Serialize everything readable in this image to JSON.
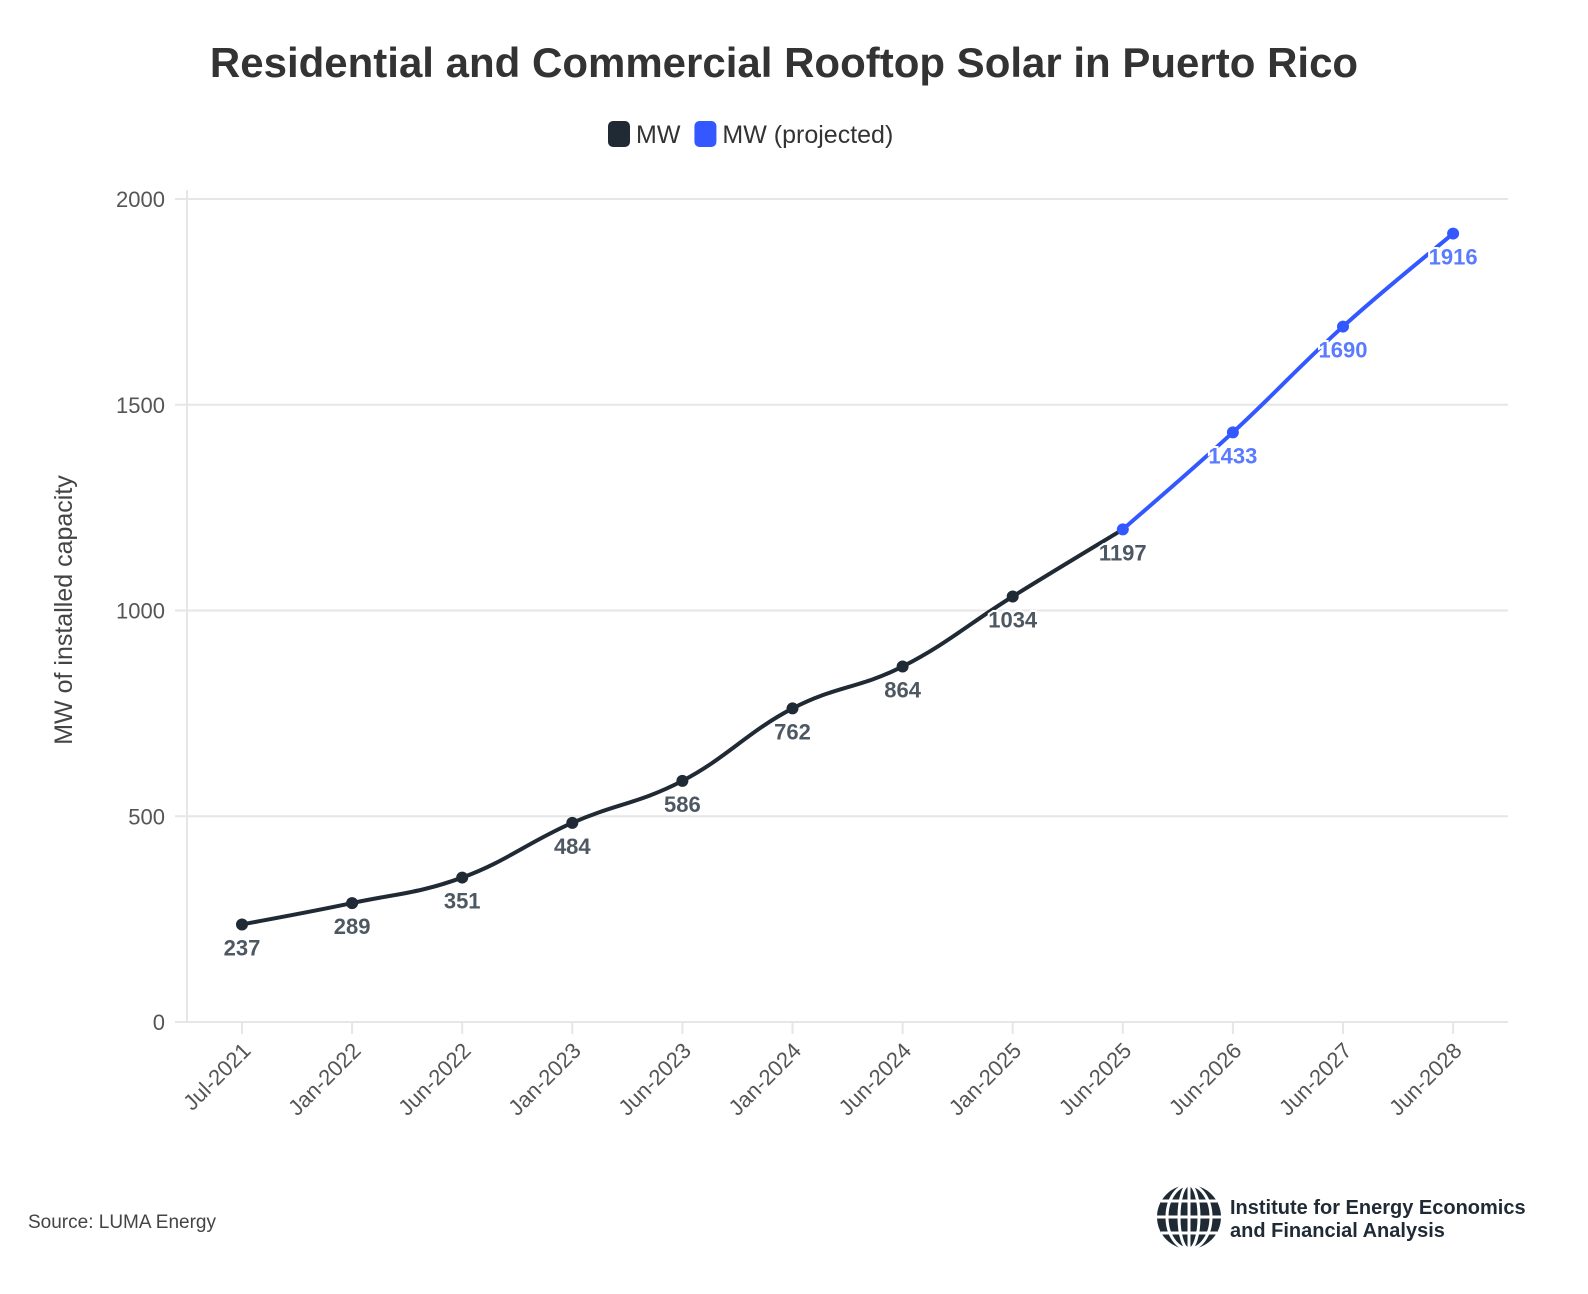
{
  "chart_data": {
    "type": "line",
    "title": "Residential and Commercial Rooftop Solar in Puerto Rico",
    "ylabel": "MW of installed capacity",
    "xlabel": "",
    "ylim": [
      0,
      2000
    ],
    "yticks": [
      0,
      500,
      1000,
      1500,
      2000
    ],
    "grid": true,
    "legend_placement": "top-center",
    "categories": [
      "Jul-2021",
      "Jan-2022",
      "Jun-2022",
      "Jan-2023",
      "Jun-2023",
      "Jan-2024",
      "Jun-2024",
      "Jan-2025",
      "Jun-2025",
      "Jun-2026",
      "Jun-2027",
      "Jun-2028"
    ],
    "series": [
      {
        "name": "MW",
        "color": "#1f2a35",
        "label_color": "#4d5862",
        "values": [
          237,
          289,
          351,
          484,
          586,
          762,
          864,
          1034,
          1197,
          null,
          null,
          null
        ]
      },
      {
        "name": "MW (projected)",
        "color": "#3358ff",
        "label_color": "#5a7bff",
        "values": [
          null,
          null,
          null,
          null,
          null,
          null,
          null,
          null,
          1197,
          1433,
          1690,
          1916
        ]
      }
    ],
    "data_labels": [
      "237",
      "289",
      "351",
      "484",
      "586",
      "762",
      "864",
      "1034",
      "1197",
      "1433",
      "1690",
      "1916"
    ]
  },
  "source": "Source: LUMA Energy",
  "logo": {
    "line1": "Institute for Energy Economics",
    "line2": "and Financial Analysis"
  }
}
